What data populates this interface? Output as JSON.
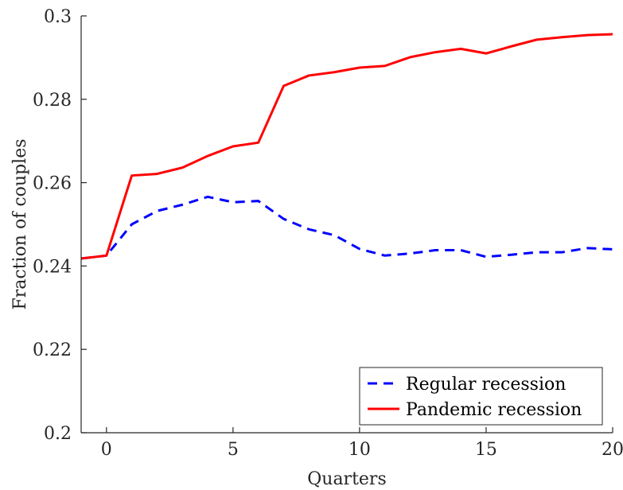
{
  "chart_data": {
    "type": "line",
    "title": "",
    "xlabel": "Quarters",
    "ylabel": "Fraction of couples",
    "xlim": [
      -1,
      20
    ],
    "ylim": [
      0.2,
      0.3
    ],
    "xticks": [
      0,
      5,
      10,
      15,
      20
    ],
    "yticks": [
      0.2,
      0.22,
      0.24,
      0.26,
      0.28,
      0.3
    ],
    "xtick_labels": [
      "0",
      "5",
      "10",
      "15",
      "20"
    ],
    "ytick_labels": [
      "0.2",
      "0.22",
      "0.24",
      "0.26",
      "0.28",
      "0.3"
    ],
    "legend_position": "bottom-right",
    "grid": false,
    "series": [
      {
        "name": "Regular recession",
        "color": "#0000ff",
        "style": "dashed",
        "x": [
          -1,
          0,
          1,
          2,
          3,
          4,
          5,
          6,
          7,
          8,
          9,
          10,
          11,
          12,
          13,
          14,
          15,
          16,
          17,
          18,
          19,
          20
        ],
        "values": [
          0.2418,
          0.2425,
          0.25,
          0.2532,
          0.2547,
          0.2566,
          0.2553,
          0.2556,
          0.2513,
          0.2488,
          0.2474,
          0.2441,
          0.2425,
          0.243,
          0.2438,
          0.2438,
          0.2422,
          0.2427,
          0.2433,
          0.2433,
          0.2443,
          0.244
        ]
      },
      {
        "name": "Pandemic recession",
        "color": "#ff0000",
        "style": "solid",
        "x": [
          -1,
          0,
          1,
          2,
          3,
          4,
          5,
          6,
          7,
          8,
          9,
          10,
          11,
          12,
          13,
          14,
          15,
          16,
          17,
          18,
          19,
          20
        ],
        "values": [
          0.2418,
          0.2425,
          0.2617,
          0.2621,
          0.2636,
          0.2664,
          0.2687,
          0.2696,
          0.2832,
          0.2857,
          0.2865,
          0.2876,
          0.288,
          0.2901,
          0.2913,
          0.2921,
          0.291,
          0.2927,
          0.2943,
          0.2949,
          0.2954,
          0.2956
        ]
      }
    ]
  }
}
